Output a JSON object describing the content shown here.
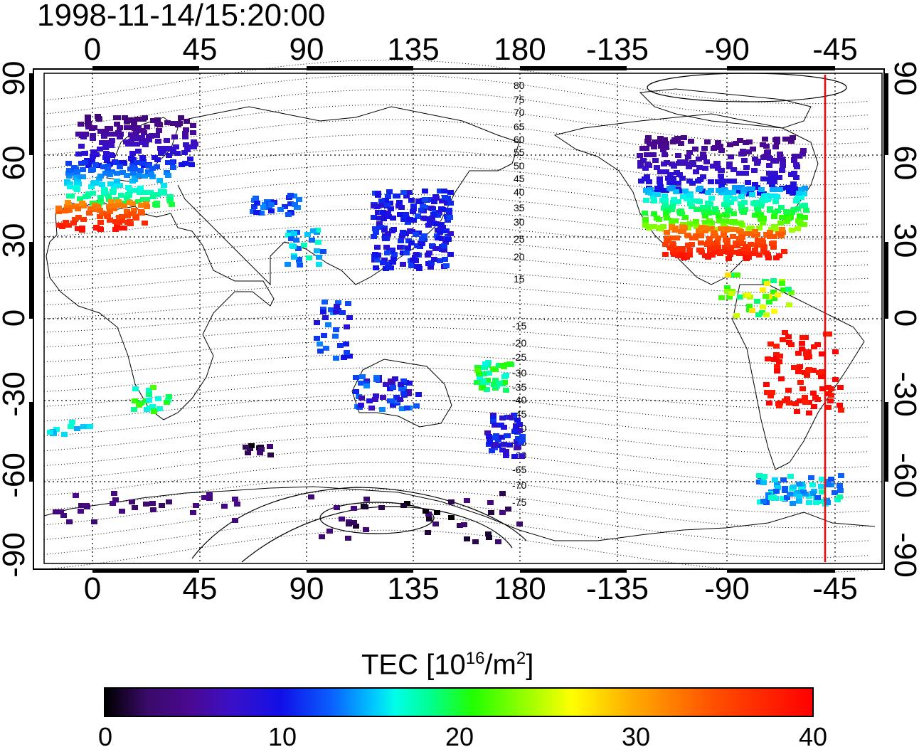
{
  "title": "1998-11-14/15:20:00",
  "top_lon_labels": [
    "0",
    "45",
    "90",
    "135",
    "180",
    "-135",
    "-90",
    "-45"
  ],
  "bottom_lon_labels": [
    "0",
    "45",
    "90",
    "135",
    "180",
    "-135",
    "-90",
    "-45"
  ],
  "left_lat_labels": [
    "90",
    "60",
    "30",
    "0",
    "-30",
    "-60",
    "-90"
  ],
  "right_lat_labels": [
    "90",
    "60",
    "30",
    "0",
    "-30",
    "-60",
    "-90"
  ],
  "mag_lat_labels": [
    "80",
    "75",
    "70",
    "65",
    "60",
    "55",
    "50",
    "45",
    "40",
    "35",
    "30",
    "25",
    "20",
    "15",
    "-15",
    "-20",
    "-25",
    "-30",
    "-35",
    "-40",
    "-45",
    "-50",
    "-55",
    "-60",
    "-65",
    "-70",
    "-75"
  ],
  "colorbar": {
    "label_main": "TEC  [10",
    "label_exp1": "16",
    "label_mid": "/m",
    "label_exp2": "2",
    "label_end": "]",
    "ticks": [
      "0",
      "10",
      "20",
      "30",
      "40"
    ],
    "min": 0,
    "max": 40
  },
  "colors": {
    "background": "#ffffff",
    "coast": "#000000",
    "terminator": "#ff0000"
  }
}
